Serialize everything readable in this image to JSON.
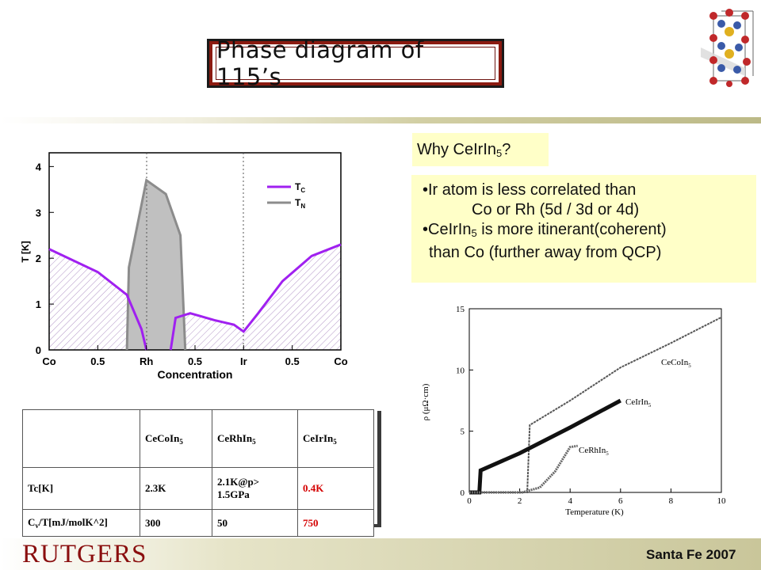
{
  "title": "Phase diagram of 115’s",
  "why": {
    "prefix": "Why CeIrIn",
    "sub": "5",
    "suffix": "?"
  },
  "bullets": {
    "l1": "•Ir atom is less correlated than",
    "l2": "Co or Rh (5d / 3d or 4d)",
    "l3a": "•CeIrIn",
    "l3sub": "5",
    "l3b": " is more itinerant(coherent)",
    "l4": "than Co (further away from QCP)"
  },
  "phase_diagram": {
    "ylabel": "T [K]",
    "xlabel": "Concentration",
    "yticks": [
      "0",
      "1",
      "2",
      "3",
      "4"
    ],
    "xticks": [
      "Co",
      "0.5",
      "Rh",
      "0.5",
      "Ir",
      "0.5",
      "Co"
    ],
    "legend": [
      {
        "symbol": "T",
        "sub": "C",
        "color": "#a020f0"
      },
      {
        "symbol": "T",
        "sub": "N",
        "color": "#8c8c8c"
      }
    ]
  },
  "chart_data": [
    {
      "type": "line",
      "ylabel": "T [K]",
      "xlabel": "Concentration",
      "ylim": [
        0,
        4.3
      ],
      "x_ticks": [
        "Co",
        "0.5",
        "Rh",
        "0.5",
        "Ir",
        "0.5",
        "Co"
      ],
      "series": [
        {
          "name": "T_C",
          "color": "#a020f0",
          "points": [
            [
              0,
              2.2
            ],
            [
              0.5,
              1.7
            ],
            [
              0.8,
              1.2
            ],
            [
              0.95,
              0.45
            ],
            [
              1.0,
              0
            ],
            [
              1.25,
              0
            ],
            [
              1.3,
              0.7
            ],
            [
              1.45,
              0.8
            ],
            [
              1.7,
              0.65
            ],
            [
              1.9,
              0.55
            ],
            [
              2.0,
              0.4
            ],
            [
              2.15,
              0.8
            ],
            [
              2.4,
              1.5
            ],
            [
              2.7,
              2.05
            ],
            [
              3.0,
              2.3
            ]
          ]
        },
        {
          "name": "T_N",
          "color": "#8c8c8c",
          "points": [
            [
              0.8,
              0
            ],
            [
              0.82,
              1.8
            ],
            [
              1.0,
              3.7
            ],
            [
              1.2,
              3.4
            ],
            [
              1.35,
              2.5
            ],
            [
              1.4,
              0
            ]
          ]
        }
      ]
    },
    {
      "type": "line",
      "xlabel": "Temperature (K)",
      "ylabel": "ρ (μΩ·cm)",
      "xlim": [
        0,
        10
      ],
      "ylim": [
        0,
        15
      ],
      "x_ticks": [
        "0",
        "2",
        "4",
        "6",
        "8",
        "10"
      ],
      "y_ticks": [
        "0",
        "5",
        "10",
        "15"
      ],
      "series": [
        {
          "name": "CeCoIn5",
          "points": [
            [
              0,
              0
            ],
            [
              2.3,
              0
            ],
            [
              2.4,
              5.5
            ],
            [
              4,
              7.5
            ],
            [
              6,
              10.2
            ],
            [
              8,
              12.2
            ],
            [
              10,
              14.3
            ]
          ]
        },
        {
          "name": "CeIrIn5",
          "points": [
            [
              0,
              0
            ],
            [
              0.4,
              0
            ],
            [
              0.45,
              1.8
            ],
            [
              2,
              3.2
            ],
            [
              4,
              5.3
            ],
            [
              6,
              7.5
            ]
          ]
        },
        {
          "name": "CeRhIn5",
          "points": [
            [
              0,
              0
            ],
            [
              2.1,
              0
            ],
            [
              2.8,
              0.4
            ],
            [
              3.4,
              1.7
            ],
            [
              4,
              3.7
            ],
            [
              4.3,
              3.8
            ]
          ]
        }
      ]
    }
  ],
  "rho_plot": {
    "ylabel": "ρ (μΩ·cm)",
    "xlabel": "Temperature (K)",
    "xticks": [
      "0",
      "2",
      "4",
      "6",
      "8",
      "10"
    ],
    "yticks": [
      "0",
      "5",
      "10",
      "15"
    ],
    "labels": [
      {
        "main": "CeCoIn",
        "sub": "5"
      },
      {
        "main": "CeIrIn",
        "sub": "5"
      },
      {
        "main": "CeRhIn",
        "sub": "5"
      }
    ]
  },
  "table": {
    "headers": [
      {
        "main": "CeCoIn",
        "sub": "5"
      },
      {
        "main": "CeRhIn",
        "sub": "5"
      },
      {
        "main": "CeIrIn",
        "sub": "5"
      }
    ],
    "row1": {
      "label": "Tc[K]",
      "v1": "2.3K",
      "v2a": "2.1K@p>",
      "v2b": "1.5GPa",
      "v3": "0.4K"
    },
    "row2": {
      "label_a": "C",
      "label_sub": "v",
      "label_b": "/T[mJ/molK^2]",
      "v1": "300",
      "v2": "50",
      "v3": "750"
    }
  },
  "footer": {
    "logo": "RUTGERS",
    "place": "Santa Fe 2007"
  },
  "colors": {
    "accent_red": "#d40000",
    "tc_purple": "#a020f0",
    "tn_gray": "#8c8c8c",
    "callout": "#ffffc8"
  }
}
